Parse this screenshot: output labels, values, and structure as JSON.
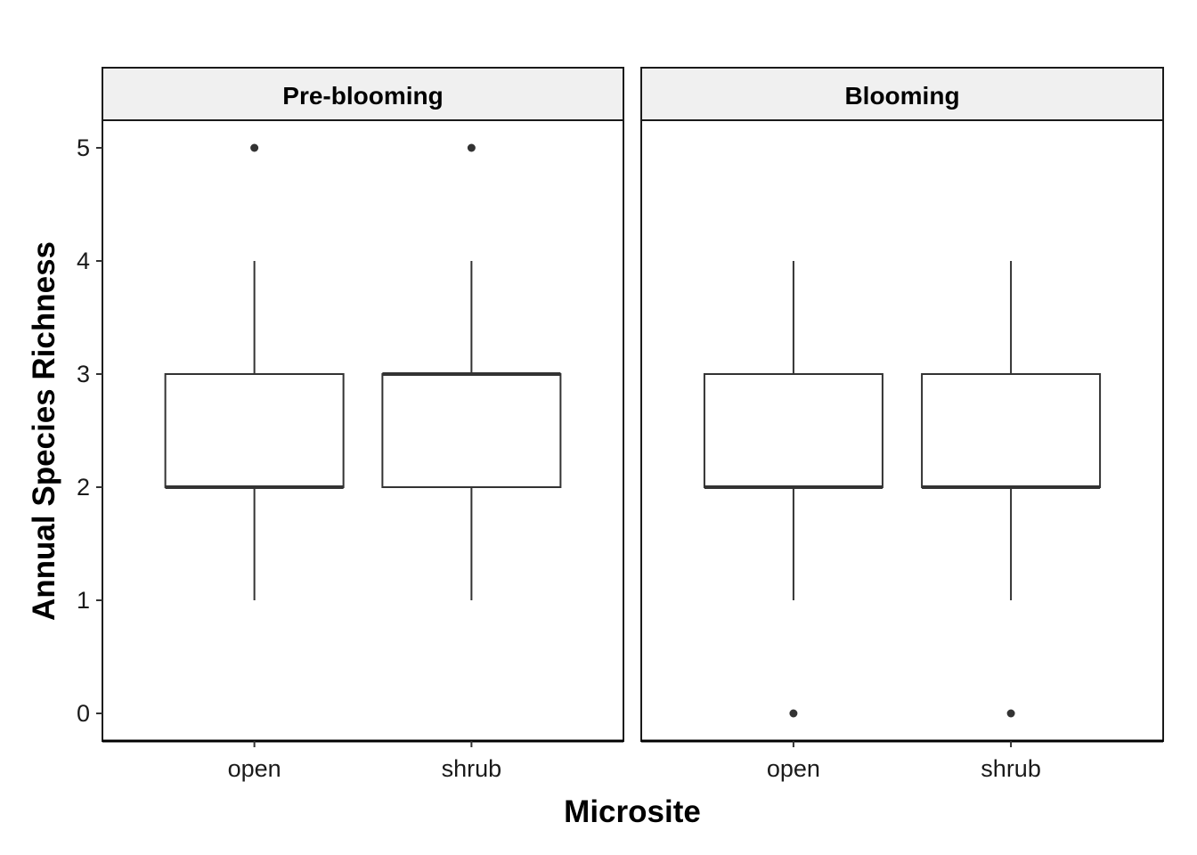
{
  "chart_data": {
    "type": "boxplot",
    "xlabel": "Microsite",
    "ylabel": "Annual Species Richness",
    "ylim": [
      0,
      5
    ],
    "yticks": [
      0,
      1,
      2,
      3,
      4,
      5
    ],
    "grid": false,
    "categories": [
      "open",
      "shrub"
    ],
    "facets": [
      {
        "label": "Pre-blooming",
        "boxes": [
          {
            "category": "open",
            "whisker_low": 1,
            "q1": 2,
            "median": 2,
            "q3": 3,
            "whisker_high": 4,
            "outliers": [
              5
            ]
          },
          {
            "category": "shrub",
            "whisker_low": 1,
            "q1": 2,
            "median": 3,
            "q3": 3,
            "whisker_high": 4,
            "outliers": [
              5
            ]
          }
        ]
      },
      {
        "label": "Blooming",
        "boxes": [
          {
            "category": "open",
            "whisker_low": 1,
            "q1": 2,
            "median": 2,
            "q3": 3,
            "whisker_high": 4,
            "outliers": [
              0
            ]
          },
          {
            "category": "shrub",
            "whisker_low": 1,
            "q1": 2,
            "median": 2,
            "q3": 3,
            "whisker_high": 4,
            "outliers": [
              0
            ]
          }
        ]
      }
    ]
  }
}
